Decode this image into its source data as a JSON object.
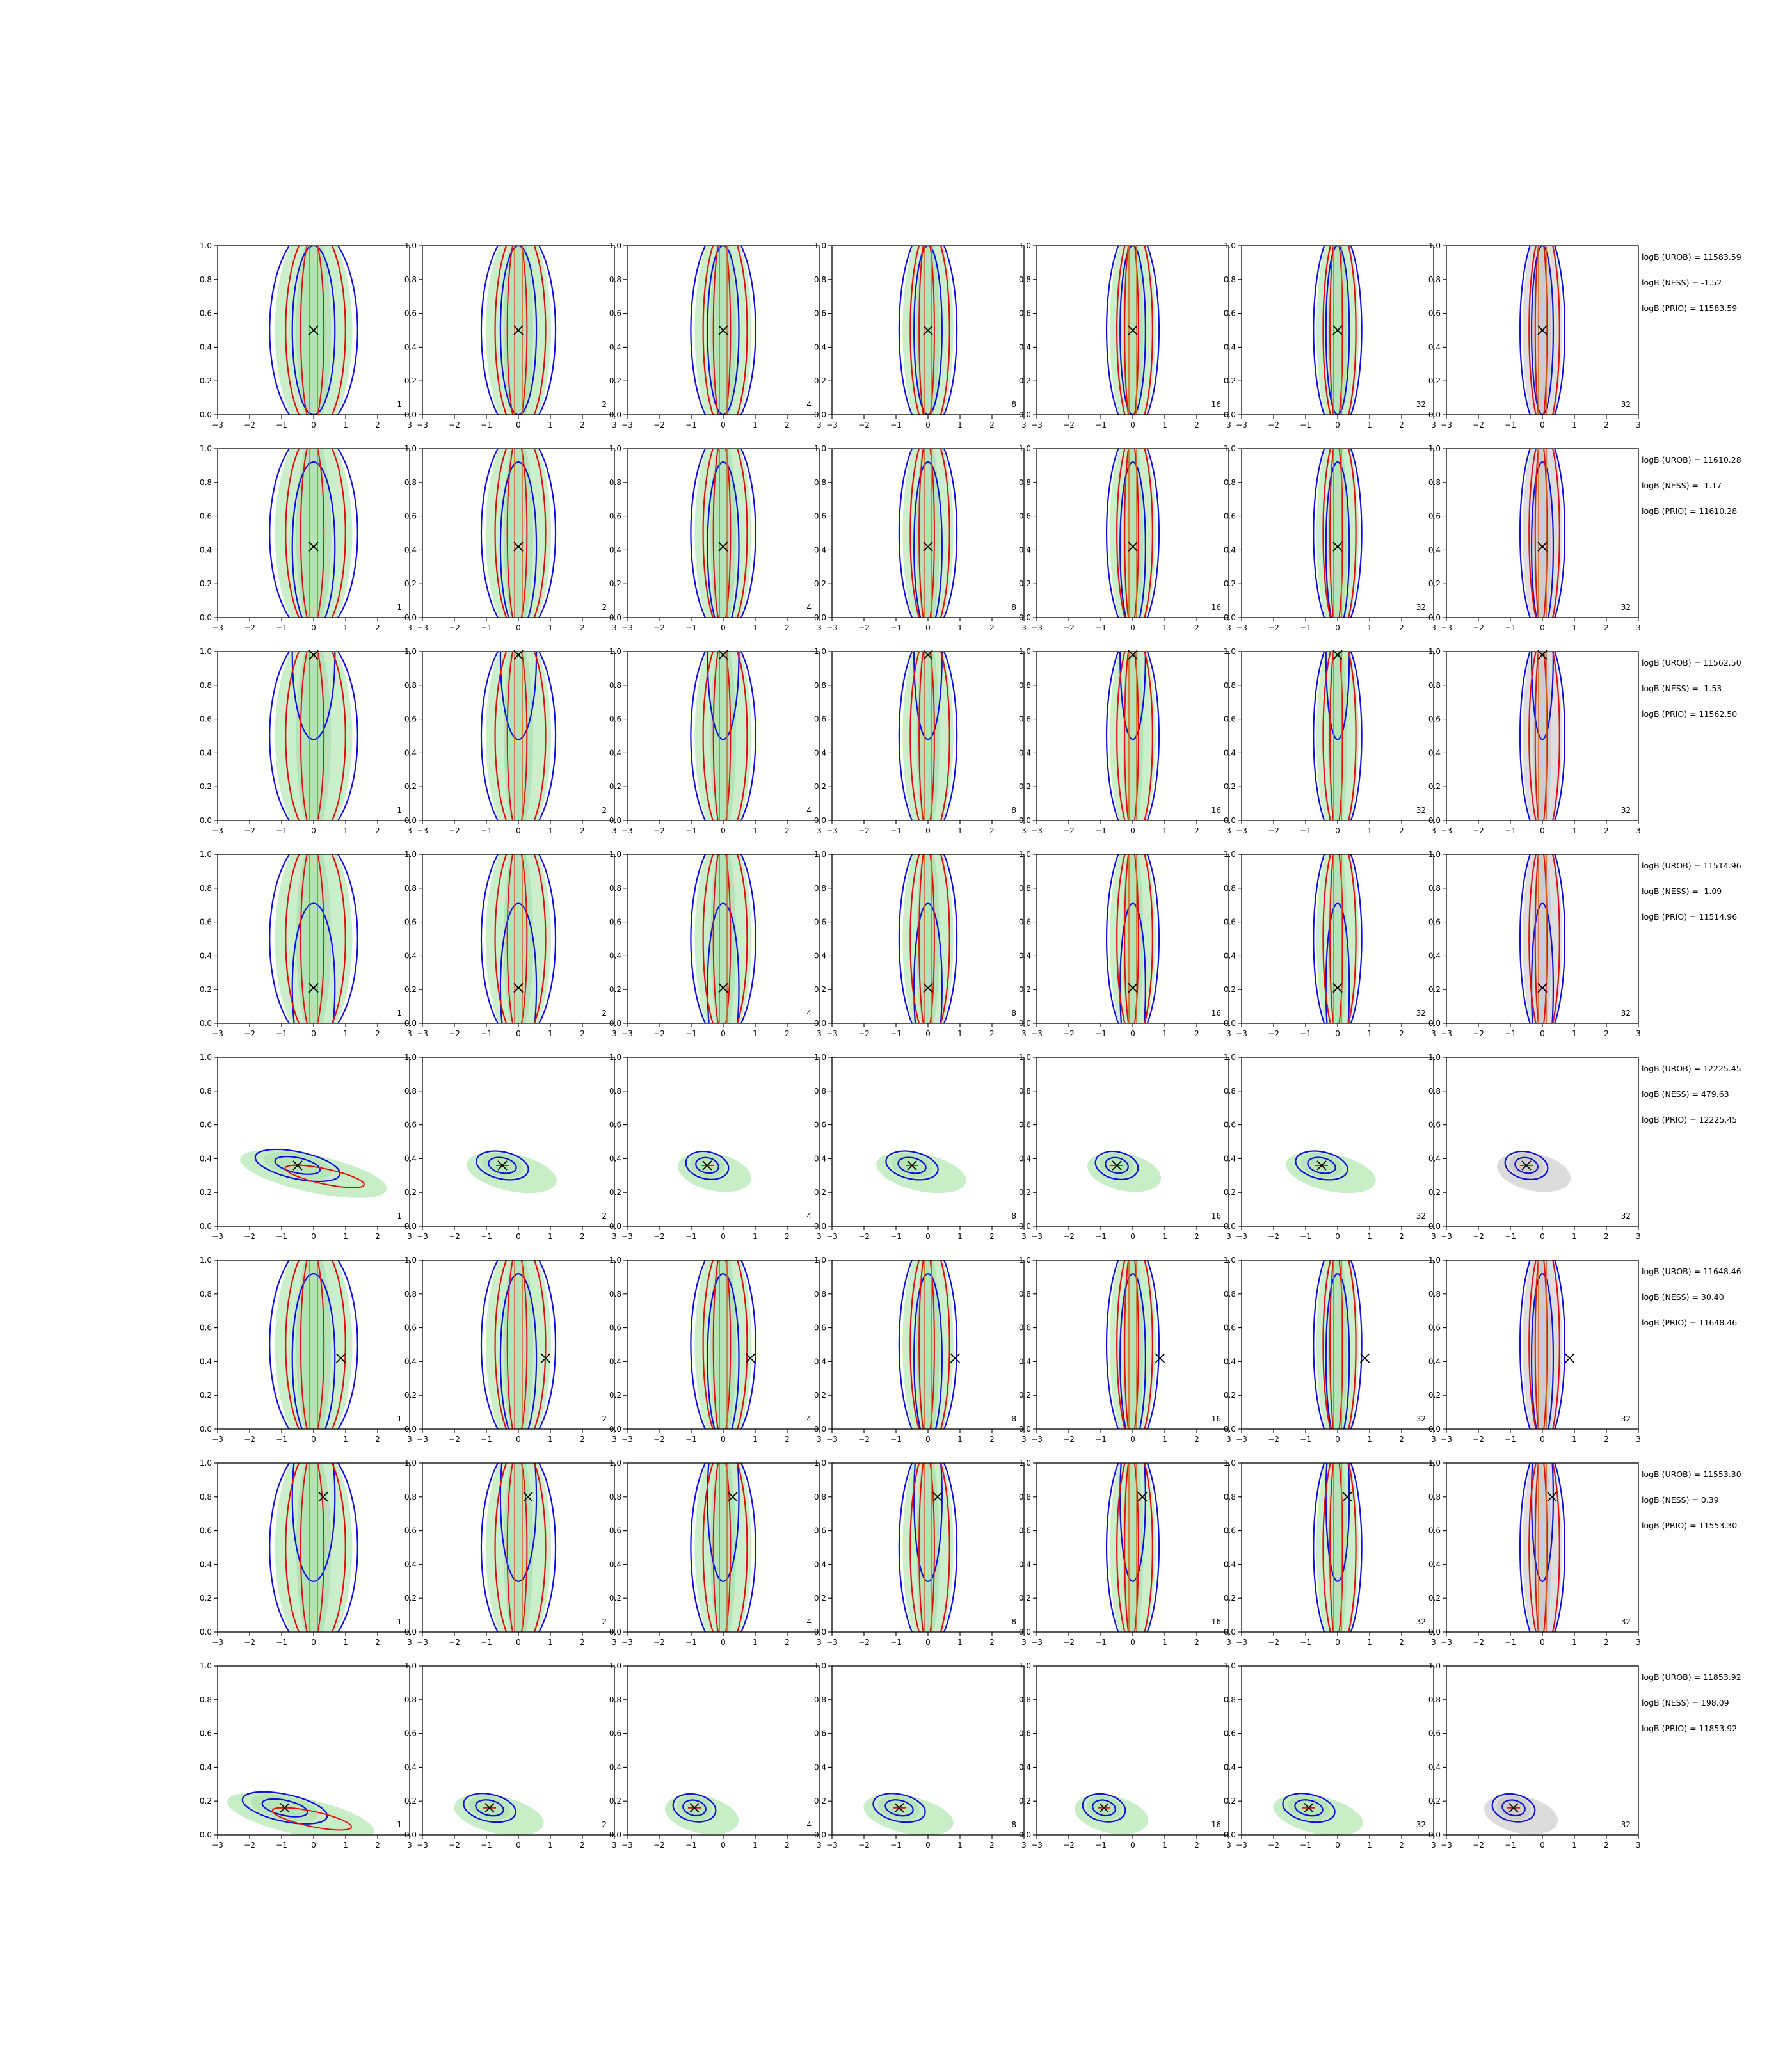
{
  "figure": {
    "rows": 8,
    "cols": 7,
    "col_labels": [
      "1",
      "2",
      "4",
      "8",
      "16",
      "32",
      "32"
    ],
    "row_labels": [
      [
        "logB (UROB) = 11583.59",
        "logB (NESS) = -1.52",
        "logB (PRIO) = 11583.59"
      ],
      [
        "logB (UROB) = 11610.28",
        "logB (NESS) = -1.17",
        "logB (PRIO) = 11610.28"
      ],
      [
        "logB (UROB) = 11562.50",
        "logB (NESS) = -1.53",
        "logB (PRIO) = 11562.50"
      ],
      [
        "logB (UROB) = 11514.96",
        "logB (NESS) = -1.09",
        "logB (PRIO) = 11514.96"
      ],
      [
        "logB (UROB) = 12225.45",
        "logB (NESS) = 479.63",
        "logB (PRIO) = 12225.45"
      ],
      [
        "logB (UROB) = 11648.46",
        "logB (NESS) = 30.40",
        "logB (PRIO) = 11648.46"
      ],
      [
        "logB (UROB) = 11553.30",
        "logB (NESS) = 0.39",
        "logB (PRIO) = 11553.30"
      ],
      [
        "logB (UROB) = 11853.92",
        "logB (NESS) = 198.09",
        "logB (PRIO) = 11853.92"
      ]
    ],
    "colors": {
      "fill": "#c7eec7",
      "fill_dark": "#a9d9ad",
      "fill_last": "#dcdcdc",
      "fill_last_dark": "#bfbfbf",
      "blue": "#1010d8",
      "red": "#e01010",
      "orange": "#d2691e",
      "marker": "#000000"
    }
  },
  "chart_data": {
    "type": "contour",
    "xlim": [
      -3,
      3
    ],
    "ylim": [
      0.0,
      1.0
    ],
    "xticks": [
      "−3",
      "−2",
      "−1",
      "0",
      "1",
      "2",
      "3"
    ],
    "yticks": [
      "0.0",
      "0.2",
      "0.4",
      "0.6",
      "0.8",
      "1.0"
    ],
    "true_values": [
      {
        "x": 0.0,
        "y": 0.5
      },
      {
        "x": 0.0,
        "y": 0.42
      },
      {
        "x": 0.0,
        "y": 0.98
      },
      {
        "x": 0.0,
        "y": 0.21
      },
      {
        "x": -0.5,
        "y": 0.36
      },
      {
        "x": 0.85,
        "y": 0.42
      },
      {
        "x": 0.3,
        "y": 0.8
      },
      {
        "x": -0.9,
        "y": 0.16
      }
    ],
    "row_shape": [
      "vertical",
      "vertical",
      "vertical",
      "vertical",
      "tilted",
      "vertical",
      "vertical",
      "tilted"
    ]
  }
}
